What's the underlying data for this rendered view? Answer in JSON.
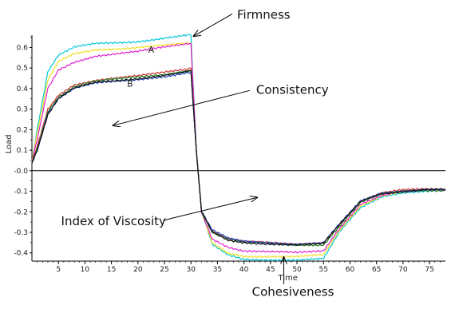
{
  "chart_data": {
    "type": "line",
    "xlabel": "Time",
    "ylabel": "Load",
    "xlim": [
      0,
      78
    ],
    "ylim": [
      -0.44,
      0.66
    ],
    "x_ticks": [
      5,
      10,
      15,
      20,
      25,
      30,
      35,
      40,
      45,
      50,
      55,
      60,
      65,
      70,
      75
    ],
    "y_ticks": [
      0.6,
      0.5,
      0.4,
      0.3,
      0.2,
      0.1,
      0.0,
      -0.1,
      -0.2,
      -0.3,
      -0.4
    ],
    "y_tick_labels": [
      "0.6",
      "0.5",
      "0.4",
      "0.3",
      "0.2",
      "0.1",
      "-0.0",
      "-0.1",
      "-0.2",
      "-0.3",
      "-0.4"
    ],
    "grid": false,
    "zero_line": true,
    "series": [
      {
        "color": "#00c8d8",
        "points": [
          [
            0,
            0.04
          ],
          [
            1,
            0.2
          ],
          [
            3,
            0.48
          ],
          [
            5,
            0.56
          ],
          [
            8,
            0.6
          ],
          [
            12,
            0.62
          ],
          [
            20,
            0.63
          ],
          [
            25,
            0.645
          ],
          [
            30,
            0.66
          ],
          [
            31,
            0.1
          ],
          [
            32,
            -0.2
          ],
          [
            34,
            -0.36
          ],
          [
            37,
            -0.41
          ],
          [
            40,
            -0.43
          ],
          [
            50,
            -0.435
          ],
          [
            55,
            -0.43
          ],
          [
            58,
            -0.3
          ],
          [
            62,
            -0.18
          ],
          [
            66,
            -0.125
          ],
          [
            70,
            -0.105
          ],
          [
            74,
            -0.1
          ],
          [
            78,
            -0.095
          ]
        ]
      },
      {
        "color": "#f0e020",
        "points": [
          [
            0,
            0.04
          ],
          [
            1,
            0.18
          ],
          [
            3,
            0.44
          ],
          [
            5,
            0.53
          ],
          [
            8,
            0.57
          ],
          [
            12,
            0.59
          ],
          [
            20,
            0.6
          ],
          [
            25,
            0.61
          ],
          [
            30,
            0.62
          ],
          [
            31,
            0.1
          ],
          [
            32,
            -0.2
          ],
          [
            34,
            -0.35
          ],
          [
            37,
            -0.4
          ],
          [
            40,
            -0.415
          ],
          [
            50,
            -0.42
          ],
          [
            55,
            -0.41
          ],
          [
            58,
            -0.29
          ],
          [
            62,
            -0.17
          ],
          [
            66,
            -0.12
          ],
          [
            70,
            -0.1
          ],
          [
            74,
            -0.098
          ],
          [
            78,
            -0.097
          ]
        ]
      },
      {
        "color": "#e020d0",
        "points": [
          [
            0,
            0.04
          ],
          [
            1,
            0.15
          ],
          [
            3,
            0.4
          ],
          [
            5,
            0.49
          ],
          [
            8,
            0.53
          ],
          [
            12,
            0.56
          ],
          [
            20,
            0.58
          ],
          [
            25,
            0.6
          ],
          [
            30,
            0.62
          ],
          [
            31,
            0.1
          ],
          [
            32,
            -0.2
          ],
          [
            34,
            -0.33
          ],
          [
            37,
            -0.37
          ],
          [
            40,
            -0.39
          ],
          [
            50,
            -0.4
          ],
          [
            55,
            -0.39
          ],
          [
            58,
            -0.28
          ],
          [
            62,
            -0.16
          ],
          [
            66,
            -0.12
          ],
          [
            70,
            -0.1
          ],
          [
            74,
            -0.097
          ],
          [
            78,
            -0.095
          ]
        ]
      },
      {
        "color": "#d03030",
        "points": [
          [
            0,
            0.04
          ],
          [
            1,
            0.12
          ],
          [
            3,
            0.3
          ],
          [
            5,
            0.37
          ],
          [
            8,
            0.42
          ],
          [
            12,
            0.44
          ],
          [
            20,
            0.46
          ],
          [
            25,
            0.48
          ],
          [
            30,
            0.5
          ],
          [
            31,
            0.1
          ],
          [
            32,
            -0.2
          ],
          [
            34,
            -0.29
          ],
          [
            37,
            -0.33
          ],
          [
            40,
            -0.345
          ],
          [
            50,
            -0.36
          ],
          [
            55,
            -0.35
          ],
          [
            58,
            -0.26
          ],
          [
            62,
            -0.15
          ],
          [
            66,
            -0.11
          ],
          [
            70,
            -0.095
          ],
          [
            74,
            -0.09
          ],
          [
            78,
            -0.09
          ]
        ]
      },
      {
        "color": "#208020",
        "points": [
          [
            0,
            0.04
          ],
          [
            1,
            0.11
          ],
          [
            3,
            0.29
          ],
          [
            5,
            0.36
          ],
          [
            8,
            0.41
          ],
          [
            12,
            0.435
          ],
          [
            20,
            0.455
          ],
          [
            25,
            0.47
          ],
          [
            30,
            0.49
          ],
          [
            31,
            0.1
          ],
          [
            32,
            -0.2
          ],
          [
            34,
            -0.3
          ],
          [
            37,
            -0.335
          ],
          [
            40,
            -0.35
          ],
          [
            50,
            -0.36
          ],
          [
            55,
            -0.36
          ],
          [
            58,
            -0.27
          ],
          [
            62,
            -0.155
          ],
          [
            66,
            -0.115
          ],
          [
            70,
            -0.1
          ],
          [
            74,
            -0.095
          ],
          [
            78,
            -0.095
          ]
        ]
      },
      {
        "color": "#2040c0",
        "points": [
          [
            0,
            0.04
          ],
          [
            1,
            0.1
          ],
          [
            3,
            0.28
          ],
          [
            5,
            0.35
          ],
          [
            8,
            0.4
          ],
          [
            12,
            0.425
          ],
          [
            20,
            0.445
          ],
          [
            25,
            0.46
          ],
          [
            30,
            0.48
          ],
          [
            31,
            0.1
          ],
          [
            32,
            -0.2
          ],
          [
            34,
            -0.29
          ],
          [
            37,
            -0.33
          ],
          [
            40,
            -0.345
          ],
          [
            50,
            -0.355
          ],
          [
            55,
            -0.35
          ],
          [
            58,
            -0.26
          ],
          [
            62,
            -0.15
          ],
          [
            66,
            -0.11
          ],
          [
            70,
            -0.1
          ],
          [
            74,
            -0.09
          ],
          [
            78,
            -0.09
          ]
        ]
      },
      {
        "color": "#101010",
        "points": [
          [
            0,
            0.04
          ],
          [
            1,
            0.1
          ],
          [
            3,
            0.27
          ],
          [
            5,
            0.35
          ],
          [
            8,
            0.4
          ],
          [
            12,
            0.43
          ],
          [
            20,
            0.45
          ],
          [
            25,
            0.465
          ],
          [
            30,
            0.485
          ],
          [
            31,
            0.1
          ],
          [
            32,
            -0.2
          ],
          [
            34,
            -0.3
          ],
          [
            37,
            -0.34
          ],
          [
            40,
            -0.35
          ],
          [
            50,
            -0.36
          ],
          [
            55,
            -0.355
          ],
          [
            58,
            -0.265
          ],
          [
            62,
            -0.15
          ],
          [
            66,
            -0.11
          ],
          [
            70,
            -0.1
          ],
          [
            74,
            -0.09
          ],
          [
            78,
            -0.09
          ]
        ]
      }
    ],
    "series_labels": [
      {
        "text": "A",
        "x": 22.5,
        "y": 0.575
      },
      {
        "text": "B",
        "x": 18.5,
        "y": 0.41
      }
    ],
    "annotations": [
      {
        "text": "Firmness",
        "x": 38.7,
        "y": 0.74,
        "arrow_to": [
          30.5,
          0.655
        ]
      },
      {
        "text": "Consistency",
        "x": 42.3,
        "y": 0.375,
        "arrow_to": [
          15.3,
          0.22
        ]
      },
      {
        "text": "Index of Viscosity",
        "x": 5.5,
        "y": -0.265,
        "arrow_to": [
          42.5,
          -0.13
        ]
      },
      {
        "text": "Cohesiveness",
        "x": 41.5,
        "y": -0.61,
        "arrow_to": [
          47.5,
          -0.42
        ]
      }
    ]
  }
}
